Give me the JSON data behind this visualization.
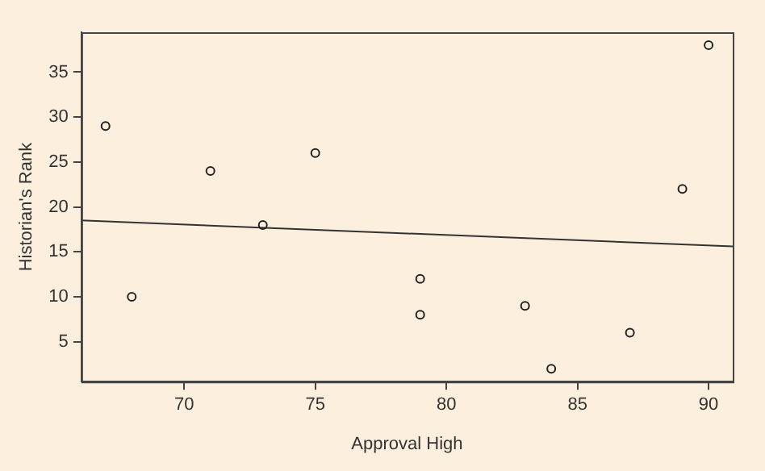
{
  "chart_data": {
    "type": "scatter",
    "xlabel": "Approval High",
    "ylabel": "Historian's Rank",
    "xlim": [
      66.08,
      90.92
    ],
    "ylim": [
      0.56,
      39.44
    ],
    "xticks": [
      70,
      75,
      80,
      85,
      90
    ],
    "yticks": [
      5,
      10,
      15,
      20,
      25,
      30,
      35
    ],
    "grid": false,
    "legend": false,
    "marker": "circle",
    "series": [
      {
        "type": "scatter",
        "color": "#222222",
        "x": [
          67,
          68,
          71,
          73,
          75,
          79,
          79,
          83,
          84,
          87,
          89,
          90
        ],
        "values": [
          29,
          10,
          24,
          18,
          26,
          12,
          8,
          9,
          2,
          6,
          22,
          38
        ]
      },
      {
        "type": "line",
        "color": "#333333",
        "x": [
          66.08,
          90.92
        ],
        "values": [
          18.5,
          15.6
        ],
        "marker": "none",
        "line_style": "solid"
      }
    ]
  }
}
